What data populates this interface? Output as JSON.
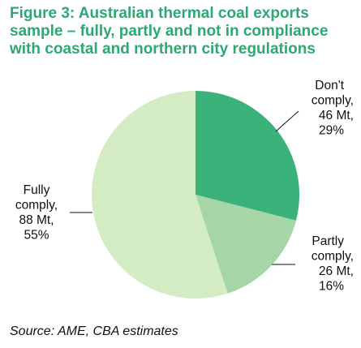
{
  "title_lines": [
    "Figure 3: Australian thermal coal exports",
    "sample – fully, partly and not in compliance",
    "with coastal and northern city regulations"
  ],
  "source": "Source: AME, CBA estimates",
  "colors": {
    "title": "#2ea873",
    "dont_comply": "#3bb27a",
    "partly_comply": "#a6d6a7",
    "fully_comply": "#d4ecc4",
    "label_text": "#111111"
  },
  "chart_data": {
    "type": "pie",
    "start_angle_deg": 0,
    "direction": "clockwise",
    "slices": [
      {
        "key": "dont_comply",
        "value": 29,
        "label_lines": [
          "Don't",
          "comply,",
          "46 Mt,",
          "29%"
        ]
      },
      {
        "key": "partly_comply",
        "value": 16,
        "label_lines": [
          "Partly",
          "comply,",
          "26 Mt,",
          "16%"
        ]
      },
      {
        "key": "fully_comply",
        "value": 55,
        "label_lines": [
          "Fully",
          "comply,",
          "88 Mt,",
          "55%"
        ]
      }
    ]
  }
}
